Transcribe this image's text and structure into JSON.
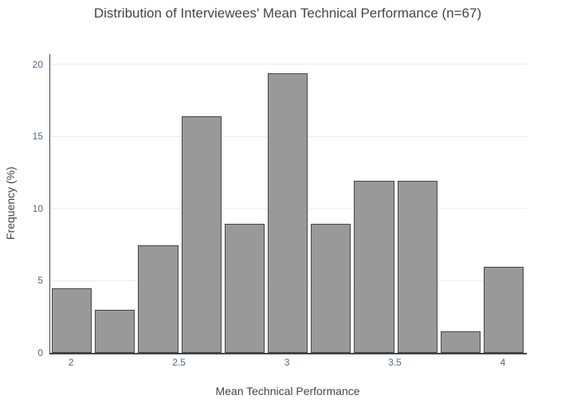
{
  "chart_data": {
    "type": "bar",
    "subtype": "histogram",
    "title": "Distribution of Interviewees' Mean Technical Performance (n=67)",
    "xlabel": "Mean Technical Performance",
    "ylabel": "Frequency (%)",
    "n_label": "n=67",
    "bin_width": 0.2,
    "bin_centers": [
      2.0,
      2.2,
      2.4,
      2.6,
      2.8,
      3.0,
      3.2,
      3.4,
      3.6,
      3.8,
      4.0
    ],
    "values": [
      4.48,
      2.99,
      7.46,
      16.42,
      8.96,
      19.4,
      8.96,
      11.94,
      11.94,
      1.49,
      5.97
    ],
    "xticks": [
      2,
      2.5,
      3,
      3.5,
      4
    ],
    "xtick_labels": [
      "2",
      "2.5",
      "3",
      "3.5",
      "4"
    ],
    "yticks": [
      0,
      5,
      10,
      15,
      20
    ],
    "ytick_labels": [
      "0",
      "5",
      "10",
      "15",
      "20"
    ],
    "xlim": [
      1.9,
      4.107
    ],
    "ylim": [
      0,
      20.7
    ],
    "grid": true,
    "legend": false,
    "colors": {
      "bar_fill": "#999999",
      "bar_border": "#444444",
      "gridline": "#ebebeb",
      "axis_line": "#444444",
      "tick_label": "#506784",
      "text": "#444444",
      "background": "#ffffff"
    }
  }
}
